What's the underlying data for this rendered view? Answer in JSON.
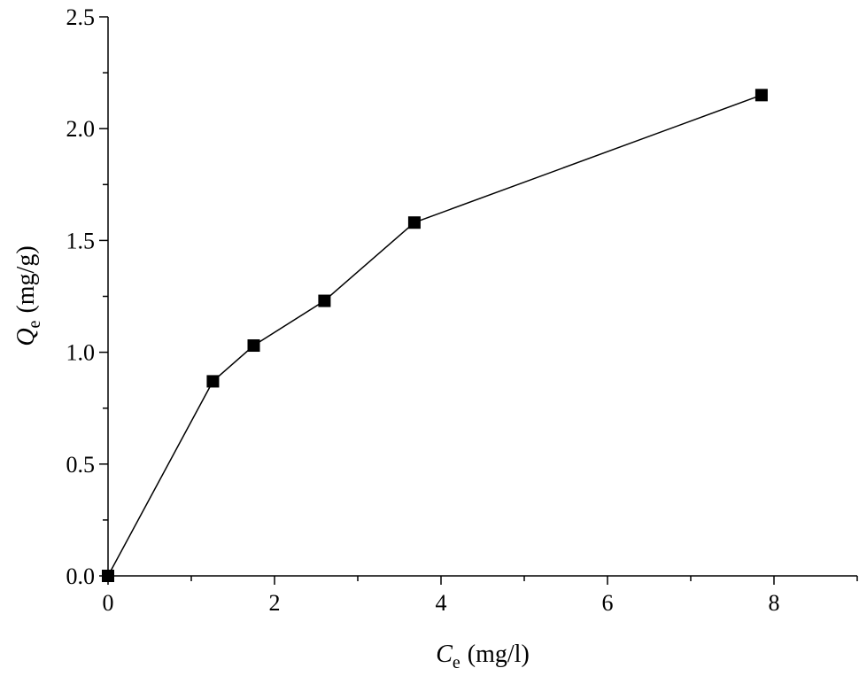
{
  "chart_data": {
    "type": "line",
    "xlabel": {
      "symbol": "C",
      "subscript": "e",
      "unit": "(mg/l)"
    },
    "ylabel": {
      "symbol": "Q",
      "subscript": "e",
      "unit": "(mg/g)"
    },
    "xlim": [
      0,
      9
    ],
    "ylim": [
      0,
      2.5
    ],
    "x_ticks": [
      0,
      2,
      4,
      6,
      8
    ],
    "x_tick_labels": [
      "0",
      "2",
      "4",
      "6",
      "8"
    ],
    "x_minor_ticks": [
      1,
      3,
      5,
      7,
      9
    ],
    "y_ticks": [
      0,
      0.5,
      1.0,
      1.5,
      2.0,
      2.5
    ],
    "y_tick_labels": [
      "0.0",
      "0.5",
      "1.0",
      "1.5",
      "2.0",
      "2.5"
    ],
    "y_minor_ticks": [
      0.25,
      0.75,
      1.25,
      1.75,
      2.25
    ],
    "grid": false,
    "legend": "none",
    "series": [
      {
        "x": [
          0.0,
          1.26,
          1.75,
          2.6,
          3.68,
          7.85
        ],
        "y": [
          0.0,
          0.87,
          1.03,
          1.23,
          1.58,
          2.15
        ],
        "marker": "square",
        "color": "#000000"
      }
    ]
  }
}
